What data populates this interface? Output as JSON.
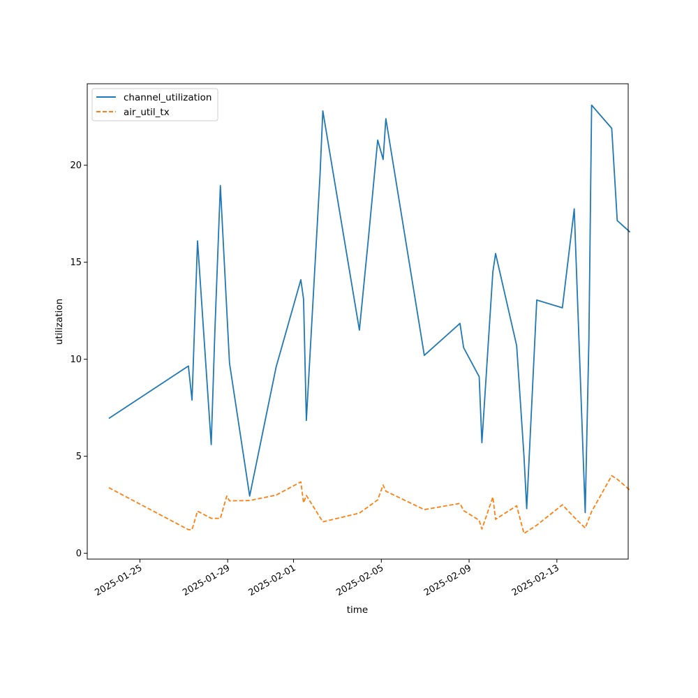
{
  "chart_data": {
    "type": "line",
    "title": "",
    "xlabel": "time",
    "ylabel": "utilization",
    "x_scale": "date",
    "xlim": [
      "2025-01-22T14:24",
      "2025-02-16T06:00"
    ],
    "ylim": [
      -0.3,
      24.2
    ],
    "x_ticks": [
      "2025-01-25",
      "2025-01-29",
      "2025-02-01",
      "2025-02-05",
      "2025-02-09",
      "2025-02-13"
    ],
    "y_ticks": [
      0,
      5,
      10,
      15,
      20
    ],
    "grid": false,
    "legend_position": "upper-left",
    "series": [
      {
        "name": "channel_utilization",
        "color": "#1f77b4",
        "style": "solid",
        "points": [
          [
            "2025-01-23T14:00",
            6.95
          ],
          [
            "2025-01-27T05:00",
            9.65
          ],
          [
            "2025-01-27T09:00",
            7.9
          ],
          [
            "2025-01-27T15:00",
            16.1
          ],
          [
            "2025-01-28T06:00",
            5.6
          ],
          [
            "2025-01-28T10:00",
            11.5
          ],
          [
            "2025-01-28T16:00",
            18.95
          ],
          [
            "2025-01-29T02:00",
            9.8
          ],
          [
            "2025-01-30T00:00",
            2.95
          ],
          [
            "2025-01-31T05:00",
            9.6
          ],
          [
            "2025-02-01T08:00",
            14.1
          ],
          [
            "2025-02-01T11:00",
            13.1
          ],
          [
            "2025-02-01T14:00",
            6.85
          ],
          [
            "2025-02-02T05:00",
            19.5
          ],
          [
            "2025-02-02T08:00",
            22.8
          ],
          [
            "2025-02-04T00:00",
            11.5
          ],
          [
            "2025-02-04T10:00",
            16.3
          ],
          [
            "2025-02-04T20:00",
            21.3
          ],
          [
            "2025-02-05T02:00",
            20.3
          ],
          [
            "2025-02-05T05:00",
            22.4
          ],
          [
            "2025-02-06T23:00",
            10.2
          ],
          [
            "2025-02-08T14:00",
            11.85
          ],
          [
            "2025-02-08T18:00",
            10.6
          ],
          [
            "2025-02-09T11:00",
            9.1
          ],
          [
            "2025-02-09T14:00",
            5.7
          ],
          [
            "2025-02-10T02:00",
            14.5
          ],
          [
            "2025-02-10T05:00",
            15.45
          ],
          [
            "2025-02-11T04:00",
            10.7
          ],
          [
            "2025-02-11T12:00",
            5.0
          ],
          [
            "2025-02-11T15:00",
            2.3
          ],
          [
            "2025-02-12T02:00",
            13.05
          ],
          [
            "2025-02-13T06:00",
            12.65
          ],
          [
            "2025-02-13T19:00",
            17.75
          ],
          [
            "2025-02-14T07:00",
            2.1
          ],
          [
            "2025-02-14T11:00",
            11.0
          ],
          [
            "2025-02-14T14:00",
            23.1
          ],
          [
            "2025-02-15T12:00",
            21.9
          ],
          [
            "2025-02-15T18:00",
            17.15
          ],
          [
            "2025-02-16T08:00",
            16.55
          ]
        ]
      },
      {
        "name": "air_util_tx",
        "color": "#ff7f0e",
        "style": "dashed",
        "points": [
          [
            "2025-01-23T14:00",
            3.38
          ],
          [
            "2025-01-27T05:00",
            1.22
          ],
          [
            "2025-01-27T09:00",
            1.22
          ],
          [
            "2025-01-27T15:00",
            2.17
          ],
          [
            "2025-01-28T06:00",
            1.8
          ],
          [
            "2025-01-28T16:00",
            1.8
          ],
          [
            "2025-01-28T23:00",
            2.95
          ],
          [
            "2025-01-29T02:00",
            2.7
          ],
          [
            "2025-01-30T00:00",
            2.72
          ],
          [
            "2025-01-31T05:00",
            3.0
          ],
          [
            "2025-02-01T08:00",
            3.68
          ],
          [
            "2025-02-01T11:00",
            2.6
          ],
          [
            "2025-02-01T14:00",
            2.98
          ],
          [
            "2025-02-02T08:00",
            1.62
          ],
          [
            "2025-02-04T00:00",
            2.07
          ],
          [
            "2025-02-04T20:00",
            2.75
          ],
          [
            "2025-02-05T02:00",
            3.52
          ],
          [
            "2025-02-05T05:00",
            3.2
          ],
          [
            "2025-02-06T23:00",
            2.25
          ],
          [
            "2025-02-08T14:00",
            2.57
          ],
          [
            "2025-02-08T18:00",
            2.2
          ],
          [
            "2025-02-09T11:00",
            1.7
          ],
          [
            "2025-02-09T14:00",
            1.25
          ],
          [
            "2025-02-10T02:00",
            2.9
          ],
          [
            "2025-02-10T05:00",
            1.75
          ],
          [
            "2025-02-11T04:00",
            2.45
          ],
          [
            "2025-02-11T12:00",
            1.02
          ],
          [
            "2025-02-12T02:00",
            1.45
          ],
          [
            "2025-02-13T06:00",
            2.5
          ],
          [
            "2025-02-13T19:00",
            1.85
          ],
          [
            "2025-02-14T07:00",
            1.3
          ],
          [
            "2025-02-14T14:00",
            2.15
          ],
          [
            "2025-02-15T12:00",
            4.0
          ],
          [
            "2025-02-15T18:00",
            3.82
          ],
          [
            "2025-02-16T08:00",
            3.25
          ]
        ]
      }
    ]
  }
}
